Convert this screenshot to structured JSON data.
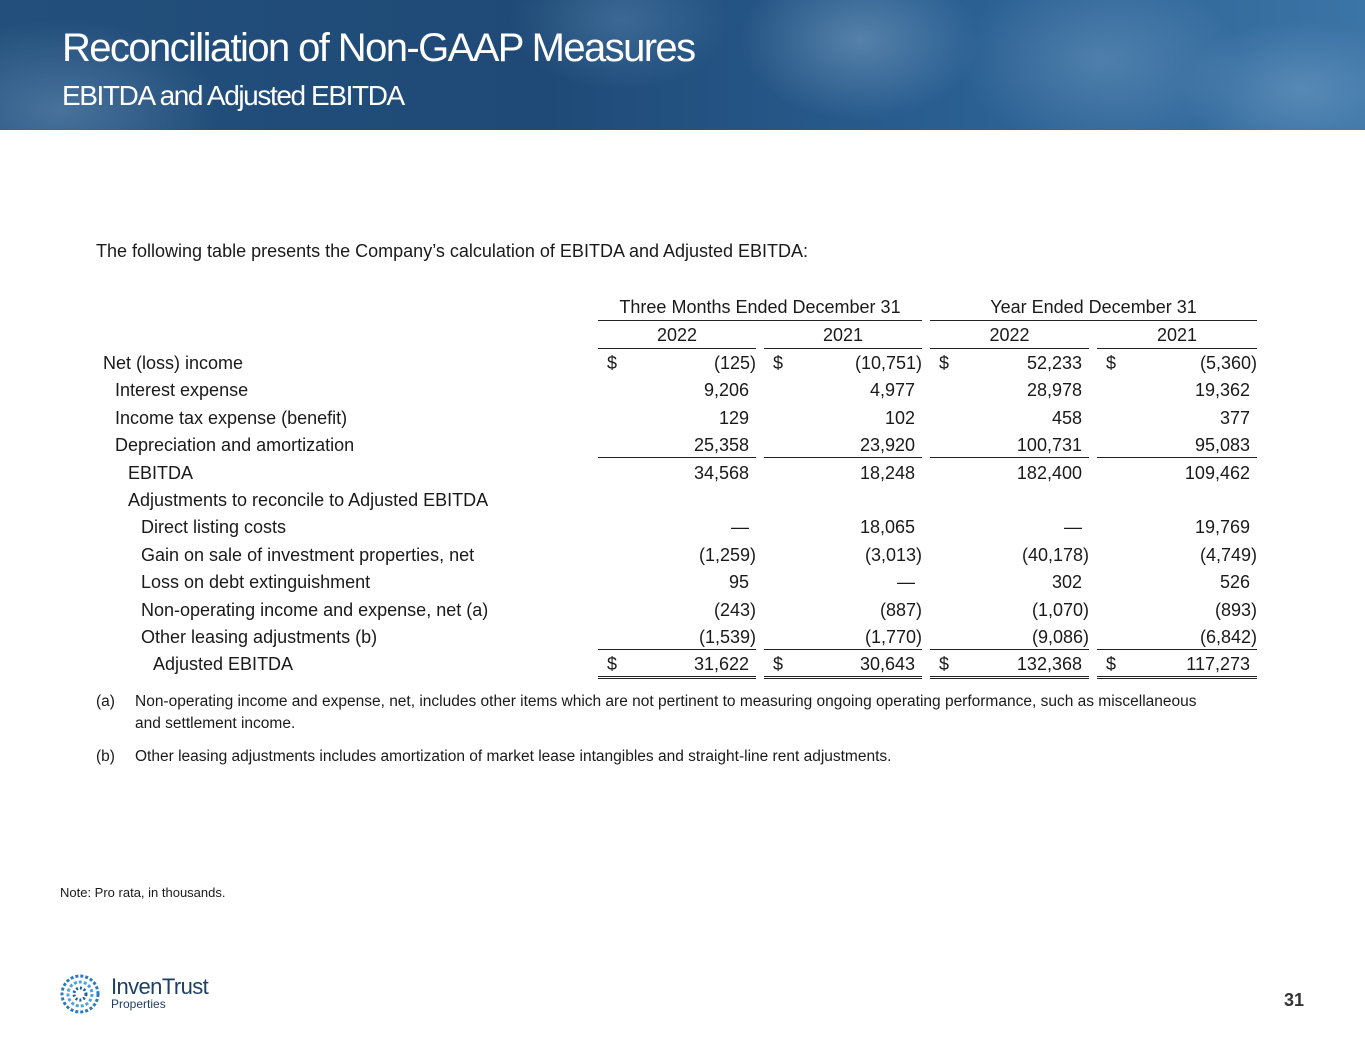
{
  "header": {
    "title": "Reconciliation of Non-GAAP Measures",
    "subtitle": "EBITDA and Adjusted EBITDA"
  },
  "intro": "The following table presents the Company’s calculation of EBITDA and Adjusted EBITDA:",
  "table": {
    "column_groups": [
      "Three Months Ended December 31",
      "Year Ended December 31"
    ],
    "columns": [
      "2022",
      "2021",
      "2022",
      "2021"
    ],
    "rows": [
      {
        "label": "Net (loss) income",
        "symbols": [
          "$",
          "$",
          "$",
          "$"
        ],
        "values": [
          "(125)",
          "(10,751)",
          "52,233",
          "(5,360)"
        ]
      },
      {
        "label": "Interest expense",
        "values": [
          "9,206",
          "4,977",
          "28,978",
          "19,362"
        ]
      },
      {
        "label": "Income tax expense (benefit)",
        "values": [
          "129",
          "102",
          "458",
          "377"
        ]
      },
      {
        "label": "Depreciation and amortization",
        "values": [
          "25,358",
          "23,920",
          "100,731",
          "95,083"
        ]
      },
      {
        "label": "EBITDA",
        "values": [
          "34,568",
          "18,248",
          "182,400",
          "109,462"
        ]
      },
      {
        "label": "Adjustments to reconcile to Adjusted EBITDA",
        "values": []
      },
      {
        "label": "Direct listing costs",
        "values": [
          "—",
          "18,065",
          "—",
          "19,769"
        ]
      },
      {
        "label": "Gain on sale of investment properties, net",
        "values": [
          "(1,259)",
          "(3,013)",
          "(40,178)",
          "(4,749)"
        ]
      },
      {
        "label": "Loss on debt extinguishment",
        "values": [
          "95",
          "—",
          "302",
          "526"
        ]
      },
      {
        "label": "Non-operating income and expense, net (a)",
        "values": [
          "(243)",
          "(887)",
          "(1,070)",
          "(893)"
        ]
      },
      {
        "label": "Other leasing adjustments (b)",
        "values": [
          "(1,539)",
          "(1,770)",
          "(9,086)",
          "(6,842)"
        ]
      },
      {
        "label": "Adjusted EBITDA",
        "symbols": [
          "$",
          "$",
          "$",
          "$"
        ],
        "values": [
          "31,622",
          "30,643",
          "132,368",
          "117,273"
        ]
      }
    ]
  },
  "footnotes": [
    {
      "marker": "(a)",
      "text": "Non-operating income and expense, net, includes other items which are not pertinent to measuring ongoing operating performance, such as miscellaneous and settlement income."
    },
    {
      "marker": "(b)",
      "text": "Other leasing adjustments includes amortization of market lease intangibles and straight-line rent adjustments."
    }
  ],
  "note": "Note: Pro rata, in thousands.",
  "logo": {
    "name": "InvenTrust",
    "sub": "Properties"
  },
  "page_number": "31"
}
